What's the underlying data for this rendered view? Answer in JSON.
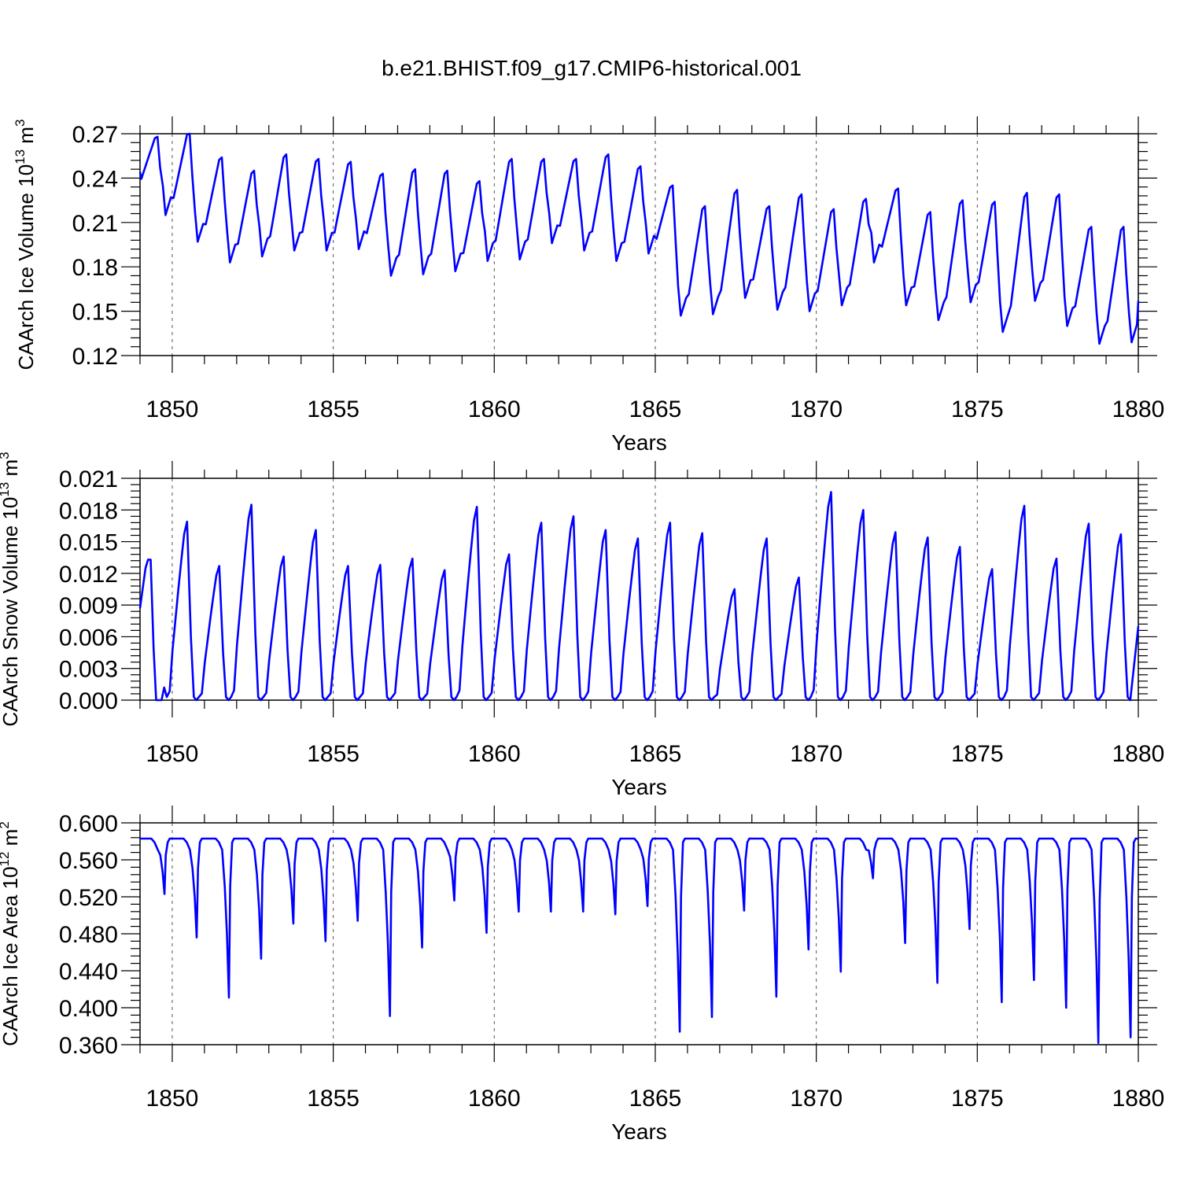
{
  "title": "b.e21.BHIST.f09_g17.CMIP6-historical.001",
  "colors": {
    "series": "#0000ff",
    "axes": "#000000",
    "grid": "#555555"
  },
  "chart_data": [
    {
      "type": "line",
      "ylabel": "CAArch Ice Volume 10",
      "ylabel_exp": "13",
      "ylabel_unit": " m",
      "ylabel_unit_exp": "3",
      "xlabel": "Years",
      "xlim": [
        1849,
        1880
      ],
      "ylim": [
        0.12,
        0.27
      ],
      "xticks": [
        "1850",
        "1855",
        "1860",
        "1865",
        "1870",
        "1875",
        "1880"
      ],
      "xtick_values": [
        1850,
        1855,
        1860,
        1865,
        1870,
        1875,
        1880
      ],
      "yticks": [
        "0.12",
        "0.15",
        "0.18",
        "0.21",
        "0.24",
        "0.27"
      ],
      "ytick_values": [
        0.12,
        0.15,
        0.18,
        0.21,
        0.24,
        0.27
      ],
      "annual_max": [
        0.268,
        0.271,
        0.254,
        0.245,
        0.256,
        0.253,
        0.251,
        0.243,
        0.246,
        0.245,
        0.238,
        0.253,
        0.253,
        0.253,
        0.256,
        0.248,
        0.235,
        0.221,
        0.232,
        0.221,
        0.229,
        0.219,
        0.226,
        0.233,
        0.217,
        0.225,
        0.224,
        0.23,
        0.229,
        0.207,
        0.207
      ],
      "annual_min": [
        0.215,
        0.197,
        0.183,
        0.187,
        0.191,
        0.191,
        0.192,
        0.174,
        0.175,
        0.177,
        0.184,
        0.185,
        0.196,
        0.191,
        0.184,
        0.189,
        0.147,
        0.148,
        0.159,
        0.151,
        0.15,
        0.154,
        0.183,
        0.154,
        0.144,
        0.156,
        0.136,
        0.157,
        0.14,
        0.128,
        0.129
      ],
      "start_value": 0.244,
      "end_value": 0.157
    },
    {
      "type": "line",
      "ylabel": "CAArch Snow Volume 10",
      "ylabel_exp": "13",
      "ylabel_unit": " m",
      "ylabel_unit_exp": "3",
      "xlabel": "Years",
      "xlim": [
        1849,
        1880
      ],
      "ylim": [
        0.0,
        0.021
      ],
      "xticks": [
        "1850",
        "1855",
        "1860",
        "1865",
        "1870",
        "1875",
        "1880"
      ],
      "xtick_values": [
        1850,
        1855,
        1860,
        1865,
        1870,
        1875,
        1880
      ],
      "yticks": [
        "0.000",
        "0.003",
        "0.006",
        "0.009",
        "0.012",
        "0.015",
        "0.018",
        "0.021"
      ],
      "ytick_values": [
        0.0,
        0.003,
        0.006,
        0.009,
        0.012,
        0.015,
        0.018,
        0.021
      ],
      "annual_max": [
        0.0133,
        0.0169,
        0.0127,
        0.0185,
        0.0136,
        0.0161,
        0.0127,
        0.0128,
        0.0134,
        0.0123,
        0.0183,
        0.0138,
        0.0168,
        0.0174,
        0.0161,
        0.0153,
        0.0168,
        0.0158,
        0.0105,
        0.0153,
        0.0116,
        0.0197,
        0.018,
        0.0159,
        0.0154,
        0.0145,
        0.0124,
        0.0184,
        0.0134,
        0.0167,
        0.0157
      ],
      "start_value": 0.0087,
      "end_value": 0.007
    },
    {
      "type": "line",
      "ylabel": "CAArch Ice Area 10",
      "ylabel_exp": "12",
      "ylabel_unit": " m",
      "ylabel_unit_exp": "2",
      "xlabel": "Years",
      "xlim": [
        1849,
        1880
      ],
      "ylim": [
        0.36,
        0.6
      ],
      "xticks": [
        "1850",
        "1855",
        "1860",
        "1865",
        "1870",
        "1875",
        "1880"
      ],
      "xtick_values": [
        1850,
        1855,
        1860,
        1865,
        1870,
        1875,
        1880
      ],
      "yticks": [
        "0.360",
        "0.400",
        "0.440",
        "0.480",
        "0.520",
        "0.560",
        "0.600"
      ],
      "ytick_values": [
        0.36,
        0.4,
        0.44,
        0.48,
        0.52,
        0.56,
        0.6
      ],
      "plateau": 0.583,
      "annual_min": [
        0.523,
        0.476,
        0.411,
        0.453,
        0.491,
        0.472,
        0.494,
        0.391,
        0.465,
        0.516,
        0.481,
        0.504,
        0.504,
        0.504,
        0.501,
        0.51,
        0.374,
        0.39,
        0.505,
        0.412,
        0.463,
        0.439,
        0.54,
        0.47,
        0.427,
        0.485,
        0.406,
        0.43,
        0.4,
        0.362,
        0.368
      ]
    }
  ]
}
